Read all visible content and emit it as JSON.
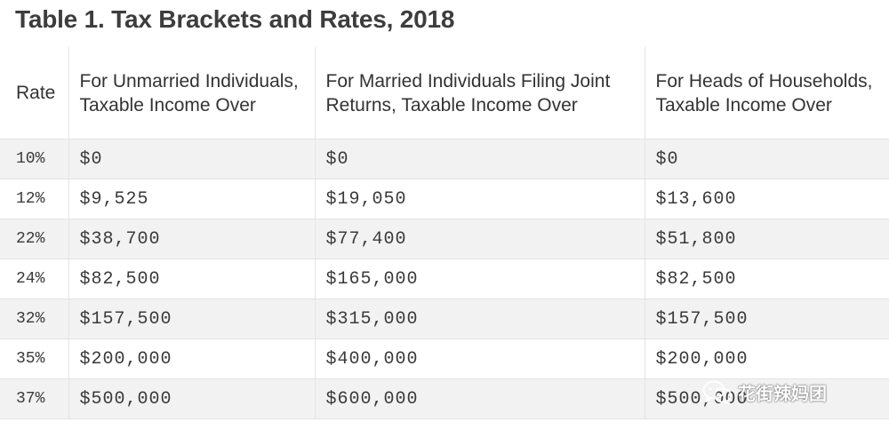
{
  "title": "Table 1. Tax Brackets and Rates, 2018",
  "table": {
    "headers": [
      "Rate",
      "For Unmarried Individuals, Taxable Income Over",
      "For Married Individuals Filing Joint Returns, Taxable Income Over",
      "For Heads of Households, Taxable Income Over"
    ],
    "rows": [
      [
        "10%",
        "$0",
        "$0",
        "$0"
      ],
      [
        "12%",
        "$9,525",
        "$19,050",
        "$13,600"
      ],
      [
        "22%",
        "$38,700",
        "$77,400",
        "$51,800"
      ],
      [
        "24%",
        "$82,500",
        "$165,000",
        "$82,500"
      ],
      [
        "32%",
        "$157,500",
        "$315,000",
        "$157,500"
      ],
      [
        "35%",
        "$200,000",
        "$400,000",
        "$200,000"
      ],
      [
        "37%",
        "$500,000",
        "$600,000",
        "$500,000"
      ]
    ]
  },
  "watermark": {
    "text": "花街辣妈团",
    "icon": "wechat-icon"
  }
}
